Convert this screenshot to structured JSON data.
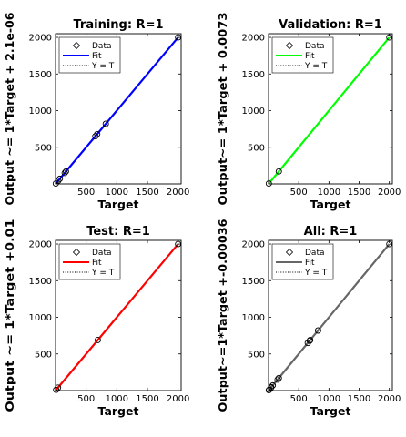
{
  "chart_data": [
    {
      "type": "scatter",
      "title": "Training: R=1",
      "xlabel": "Target",
      "ylabel": "Output ~= 1*Target + 2.1e-06",
      "xlim": [
        0,
        2050
      ],
      "ylim": [
        0,
        2050
      ],
      "xticks": [
        500,
        1000,
        1500,
        2000
      ],
      "yticks": [
        500,
        1000,
        1500,
        2000
      ],
      "legend": [
        "Data",
        "Fit",
        "Y = T"
      ],
      "legend_position": "top-left",
      "fit_color": "#0000ff",
      "fit": {
        "slope": 1,
        "intercept": 2.1e-06
      },
      "data": {
        "x": [
          5,
          45,
          70,
          150,
          170,
          650,
          680,
          820,
          2000
        ],
        "y": [
          5,
          45,
          70,
          150,
          170,
          650,
          680,
          820,
          2000
        ]
      }
    },
    {
      "type": "scatter",
      "title": "Validation: R=1",
      "xlabel": "Target",
      "ylabel": "Output~= 1*Target + 0.0073",
      "xlim": [
        0,
        2050
      ],
      "ylim": [
        0,
        2050
      ],
      "xticks": [
        500,
        1000,
        1500,
        2000
      ],
      "yticks": [
        500,
        1000,
        1500,
        2000
      ],
      "legend": [
        "Data",
        "Fit",
        "Y = T"
      ],
      "legend_position": "top-left",
      "fit_color": "#00ff00",
      "fit": {
        "slope": 1,
        "intercept": 0.0073
      },
      "data": {
        "x": [
          5,
          170,
          2000
        ],
        "y": [
          5,
          170,
          2000
        ]
      }
    },
    {
      "type": "scatter",
      "title": "Test: R=1",
      "xlabel": "Target",
      "ylabel": "Output ~= 1*Target +0.01",
      "xlim": [
        0,
        2050
      ],
      "ylim": [
        0,
        2050
      ],
      "xticks": [
        500,
        1000,
        1500,
        2000
      ],
      "yticks": [
        500,
        1000,
        1500,
        2000
      ],
      "legend": [
        "Data",
        "Fit",
        "Y = T"
      ],
      "legend_position": "top-left",
      "fit_color": "#ff0000",
      "fit": {
        "slope": 1,
        "intercept": 0.01
      },
      "data": {
        "x": [
          10,
          40,
          690,
          2000
        ],
        "y": [
          10,
          40,
          690,
          2000
        ]
      }
    },
    {
      "type": "scatter",
      "title": "All: R=1",
      "xlabel": "Target",
      "ylabel": "Output~=1*Target +-0.00036",
      "xlim": [
        0,
        2050
      ],
      "ylim": [
        0,
        2050
      ],
      "xticks": [
        500,
        1000,
        1500,
        2000
      ],
      "yticks": [
        500,
        1000,
        1500,
        2000
      ],
      "legend": [
        "Data",
        "Fit",
        "Y = T"
      ],
      "legend_position": "top-left",
      "fit_color": "#666666",
      "fit": {
        "slope": 1,
        "intercept": -0.00036
      },
      "data": {
        "x": [
          5,
          10,
          40,
          45,
          70,
          150,
          170,
          650,
          680,
          690,
          820,
          2000
        ],
        "y": [
          5,
          10,
          40,
          45,
          70,
          150,
          170,
          650,
          680,
          690,
          820,
          2000
        ]
      }
    }
  ]
}
